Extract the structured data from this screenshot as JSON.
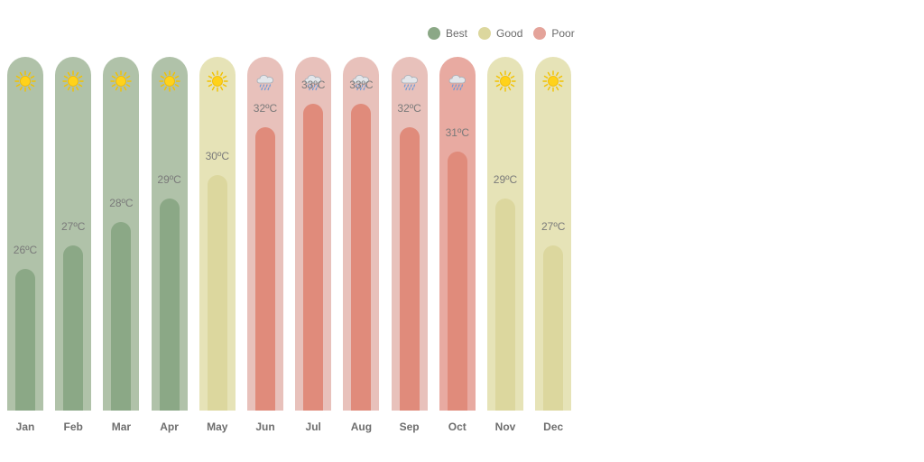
{
  "legend": [
    {
      "label": "Best",
      "color": "#8ba886"
    },
    {
      "label": "Good",
      "color": "#dcd79e"
    },
    {
      "label": "Poor",
      "color": "#e4a39a"
    }
  ],
  "chart_data": {
    "type": "bar",
    "title": "",
    "xlabel": "",
    "ylabel": "",
    "unit": "°C",
    "ylim": [
      20,
      35
    ],
    "categories": [
      "Jan",
      "Feb",
      "Mar",
      "Apr",
      "May",
      "Jun",
      "Jul",
      "Aug",
      "Sep",
      "Oct",
      "Nov",
      "Dec"
    ],
    "values": [
      26,
      27,
      28,
      29,
      30,
      32,
      33,
      33,
      32,
      31,
      29,
      27
    ],
    "labels": [
      "26ºC",
      "27ºC",
      "28ºC",
      "29ºC",
      "30ºC",
      "32ºC",
      "33ºC",
      "33ºC",
      "32ºC",
      "31ºC",
      "29ºC",
      "27ºC"
    ],
    "ratings": [
      "Best",
      "Best",
      "Best",
      "Best",
      "Good",
      "Poor",
      "Poor",
      "Poor",
      "Poor",
      "Poor",
      "Good",
      "Good"
    ],
    "icons": [
      "sun-icon",
      "sun-icon",
      "sun-icon",
      "sun-icon",
      "sun-icon",
      "rain-cloud-icon",
      "rain-cloud-icon",
      "rain-cloud-icon",
      "rain-cloud-icon",
      "rain-cloud-icon",
      "sun-icon",
      "sun-icon"
    ],
    "colors": {
      "Best": {
        "bg": "#b0c2a9",
        "bar": "#8ba886"
      },
      "Good": {
        "bg": "#e6e3b7",
        "bar": "#dcd79e"
      },
      "Poor": {
        "bg": "#e8c1bb",
        "bar": "#e08b7b"
      },
      "PoorStrong": {
        "bg": "#e8aaa1",
        "bar": "#e08b7b"
      }
    }
  }
}
